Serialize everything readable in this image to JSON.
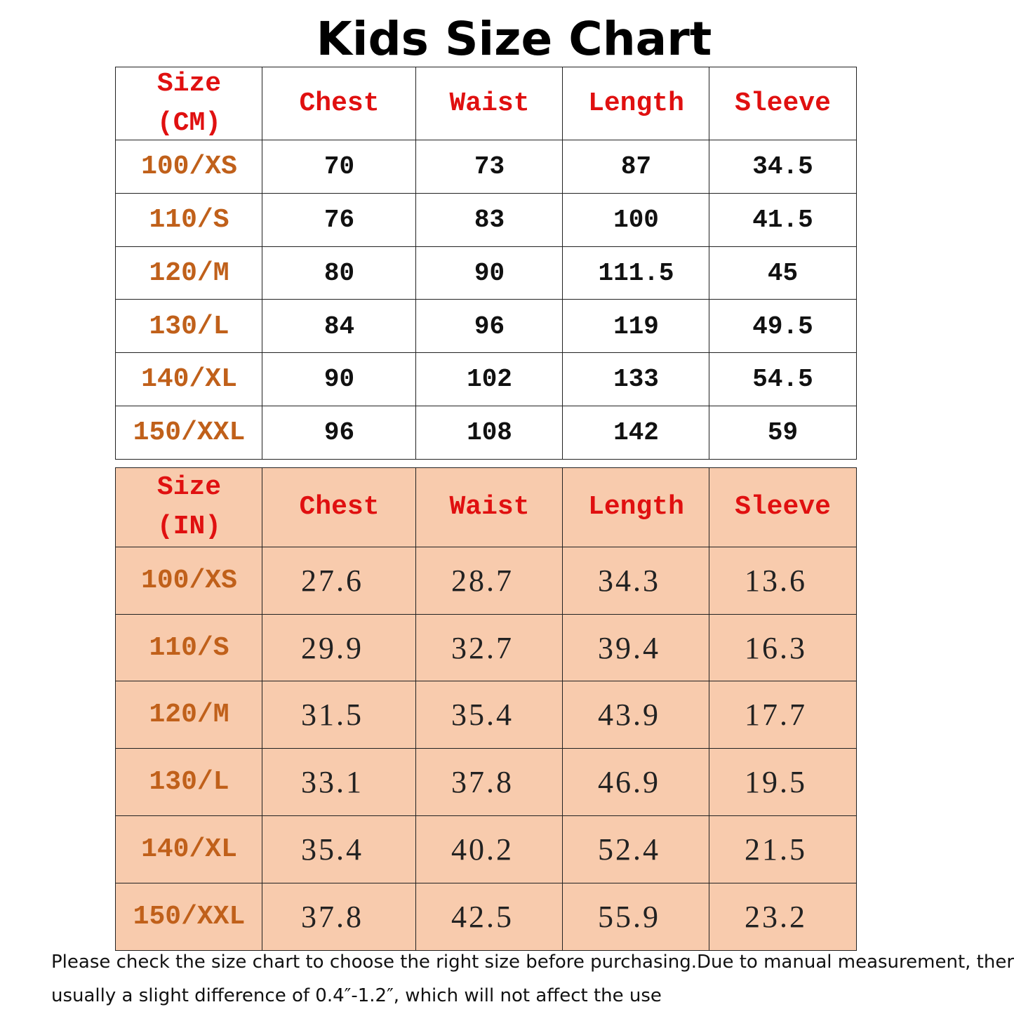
{
  "title": "Kids Size Chart",
  "tables": [
    {
      "header": [
        [
          "Size",
          "(CM)"
        ],
        "Chest",
        "Waist",
        "Length",
        "Sleeve"
      ],
      "rows": [
        [
          "100/XS",
          "70",
          "73",
          "87",
          "34.5"
        ],
        [
          "110/S",
          "76",
          "83",
          "100",
          "41.5"
        ],
        [
          "120/M",
          "80",
          "90",
          "111.5",
          "45"
        ],
        [
          "130/L",
          "84",
          "96",
          "119",
          "49.5"
        ],
        [
          "140/XL",
          "90",
          "102",
          "133",
          "54.5"
        ],
        [
          "150/XXL",
          "96",
          "108",
          "142",
          "59"
        ]
      ]
    },
    {
      "header": [
        [
          "Size",
          "(IN)"
        ],
        "Chest",
        "Waist",
        "Length",
        "Sleeve"
      ],
      "rows": [
        [
          "100/XS",
          "27.6",
          "28.7",
          "34.3",
          "13.6"
        ],
        [
          "110/S",
          "29.9",
          "32.7",
          "39.4",
          "16.3"
        ],
        [
          "120/M",
          "31.5",
          "35.4",
          "43.9",
          "17.7"
        ],
        [
          "130/L",
          "33.1",
          "37.8",
          "46.9",
          "19.5"
        ],
        [
          "140/XL",
          "35.4",
          "40.2",
          "52.4",
          "21.5"
        ],
        [
          "150/XXL",
          "37.8",
          "42.5",
          "55.9",
          "23.2"
        ]
      ]
    }
  ],
  "footnote": [
    "Please check the size chart to choose the right size before purchasing.Due to manual measurement, there is",
    "usually a slight difference of 0.4″-1.2″, which will not affect the use"
  ]
}
